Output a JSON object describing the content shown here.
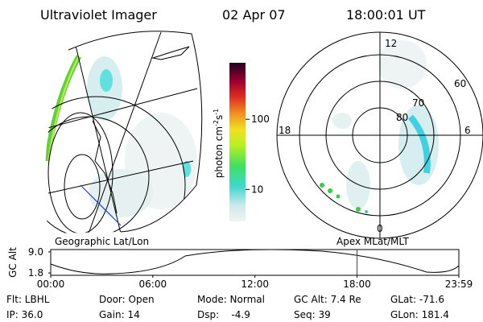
{
  "header": {
    "instrument": "Ultraviolet Imager",
    "date": "02 Apr 07",
    "time": "18:00:01 UT"
  },
  "colorbar": {
    "label": {
      "base": "photon cm",
      "exp1": "-2",
      "mid": "s",
      "exp2": "-1"
    },
    "scale": "log",
    "lim": [
      3.5,
      640
    ],
    "ticks": [
      10,
      100
    ]
  },
  "polar": {
    "mlt_labels": [
      "12",
      "18",
      "6",
      "0"
    ],
    "lat_labels": [
      "60",
      "70",
      "80"
    ]
  },
  "timeline": {
    "left_label": "Geographic Lat/Lon",
    "right_label": "Apex MLat/MLT",
    "y_label": "GC Alt",
    "xlim": [
      0,
      1439
    ],
    "xticks": [
      {
        "value": 0,
        "label": "00:00"
      },
      {
        "value": 360,
        "label": "06:00"
      },
      {
        "value": 720,
        "label": "12:00"
      },
      {
        "value": 1080,
        "label": "18:00"
      },
      {
        "value": 1439,
        "label": "23:59"
      }
    ],
    "ylim": [
      1.0,
      9.8
    ],
    "yticks": [
      {
        "value": 9.0,
        "label": "9.0"
      },
      {
        "value": 1.8,
        "label": "1.8"
      }
    ],
    "current_time": 1080,
    "marker_color": "#e00000"
  },
  "info": {
    "rows": [
      [
        "Flt: LBHL",
        "Door: Open",
        "Mode: Normal",
        "GC Alt: 7.4 Re",
        "GLat: -71.6"
      ],
      [
        "IP: 36.0",
        "Gain: 14",
        "Dsp:    -4.9",
        "Seq: 39",
        "GLon: 181.4"
      ]
    ]
  }
}
